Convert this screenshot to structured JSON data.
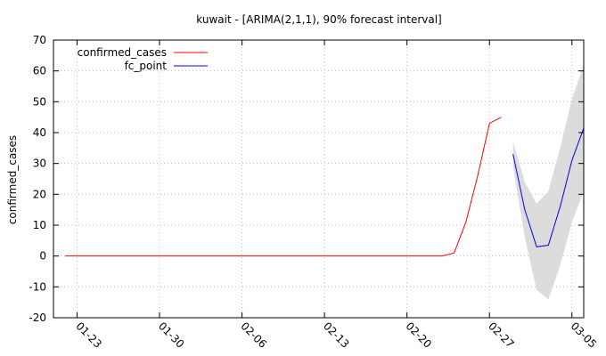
{
  "chart_data": {
    "type": "line",
    "title": "kuwait -  [ARIMA(2,1,1), 90% forecast interval]",
    "xlabel": "",
    "ylabel": "confirmed_cases",
    "ylim": [
      -20,
      70
    ],
    "yticks": [
      -20,
      -10,
      0,
      10,
      20,
      30,
      40,
      50,
      60,
      70
    ],
    "xlim": [
      "2020-01-21",
      "2020-03-06"
    ],
    "xticks": [
      {
        "date": "2020-01-23",
        "label": "01-23"
      },
      {
        "date": "2020-01-30",
        "label": "01-30"
      },
      {
        "date": "2020-02-06",
        "label": "02-06"
      },
      {
        "date": "2020-02-13",
        "label": "02-13"
      },
      {
        "date": "2020-02-20",
        "label": "02-20"
      },
      {
        "date": "2020-02-27",
        "label": "02-27"
      },
      {
        "date": "2020-03-05",
        "label": "03-05"
      }
    ],
    "grid": true,
    "legend_position": "top-left",
    "series": [
      {
        "name": "confirmed_cases",
        "color": "#ff0000",
        "points": [
          {
            "x": "2020-01-22",
            "y": 0
          },
          {
            "x": "2020-01-23",
            "y": 0
          },
          {
            "x": "2020-01-24",
            "y": 0
          },
          {
            "x": "2020-01-25",
            "y": 0
          },
          {
            "x": "2020-01-26",
            "y": 0
          },
          {
            "x": "2020-01-27",
            "y": 0
          },
          {
            "x": "2020-01-28",
            "y": 0
          },
          {
            "x": "2020-01-29",
            "y": 0
          },
          {
            "x": "2020-01-30",
            "y": 0
          },
          {
            "x": "2020-01-31",
            "y": 0
          },
          {
            "x": "2020-02-01",
            "y": 0
          },
          {
            "x": "2020-02-02",
            "y": 0
          },
          {
            "x": "2020-02-03",
            "y": 0
          },
          {
            "x": "2020-02-04",
            "y": 0
          },
          {
            "x": "2020-02-05",
            "y": 0
          },
          {
            "x": "2020-02-06",
            "y": 0
          },
          {
            "x": "2020-02-07",
            "y": 0
          },
          {
            "x": "2020-02-08",
            "y": 0
          },
          {
            "x": "2020-02-09",
            "y": 0
          },
          {
            "x": "2020-02-10",
            "y": 0
          },
          {
            "x": "2020-02-11",
            "y": 0
          },
          {
            "x": "2020-02-12",
            "y": 0
          },
          {
            "x": "2020-02-13",
            "y": 0
          },
          {
            "x": "2020-02-14",
            "y": 0
          },
          {
            "x": "2020-02-15",
            "y": 0
          },
          {
            "x": "2020-02-16",
            "y": 0
          },
          {
            "x": "2020-02-17",
            "y": 0
          },
          {
            "x": "2020-02-18",
            "y": 0
          },
          {
            "x": "2020-02-19",
            "y": 0
          },
          {
            "x": "2020-02-20",
            "y": 0
          },
          {
            "x": "2020-02-21",
            "y": 0
          },
          {
            "x": "2020-02-22",
            "y": 0
          },
          {
            "x": "2020-02-23",
            "y": 0
          },
          {
            "x": "2020-02-24",
            "y": 1
          },
          {
            "x": "2020-02-25",
            "y": 11
          },
          {
            "x": "2020-02-26",
            "y": 26
          },
          {
            "x": "2020-02-27",
            "y": 43
          },
          {
            "x": "2020-02-28",
            "y": 45
          }
        ]
      },
      {
        "name": "fc_point",
        "color": "#0000ff",
        "points": [
          {
            "x": "2020-02-29",
            "y": 33
          },
          {
            "x": "2020-03-01",
            "y": 15
          },
          {
            "x": "2020-03-02",
            "y": 3
          },
          {
            "x": "2020-03-03",
            "y": 3.5
          },
          {
            "x": "2020-03-04",
            "y": 16
          },
          {
            "x": "2020-03-05",
            "y": 31
          },
          {
            "x": "2020-03-06",
            "y": 41.5
          }
        ]
      }
    ],
    "interval": {
      "color": "#dcdcdc",
      "points": [
        {
          "x": "2020-02-29",
          "lower": 29,
          "upper": 37
        },
        {
          "x": "2020-03-01",
          "lower": 6,
          "upper": 24
        },
        {
          "x": "2020-03-02",
          "lower": -11,
          "upper": 17
        },
        {
          "x": "2020-03-03",
          "lower": -14,
          "upper": 21
        },
        {
          "x": "2020-03-04",
          "lower": -3,
          "upper": 35
        },
        {
          "x": "2020-03-05",
          "lower": 11,
          "upper": 51
        },
        {
          "x": "2020-03-06",
          "lower": 21,
          "upper": 62
        }
      ]
    }
  }
}
